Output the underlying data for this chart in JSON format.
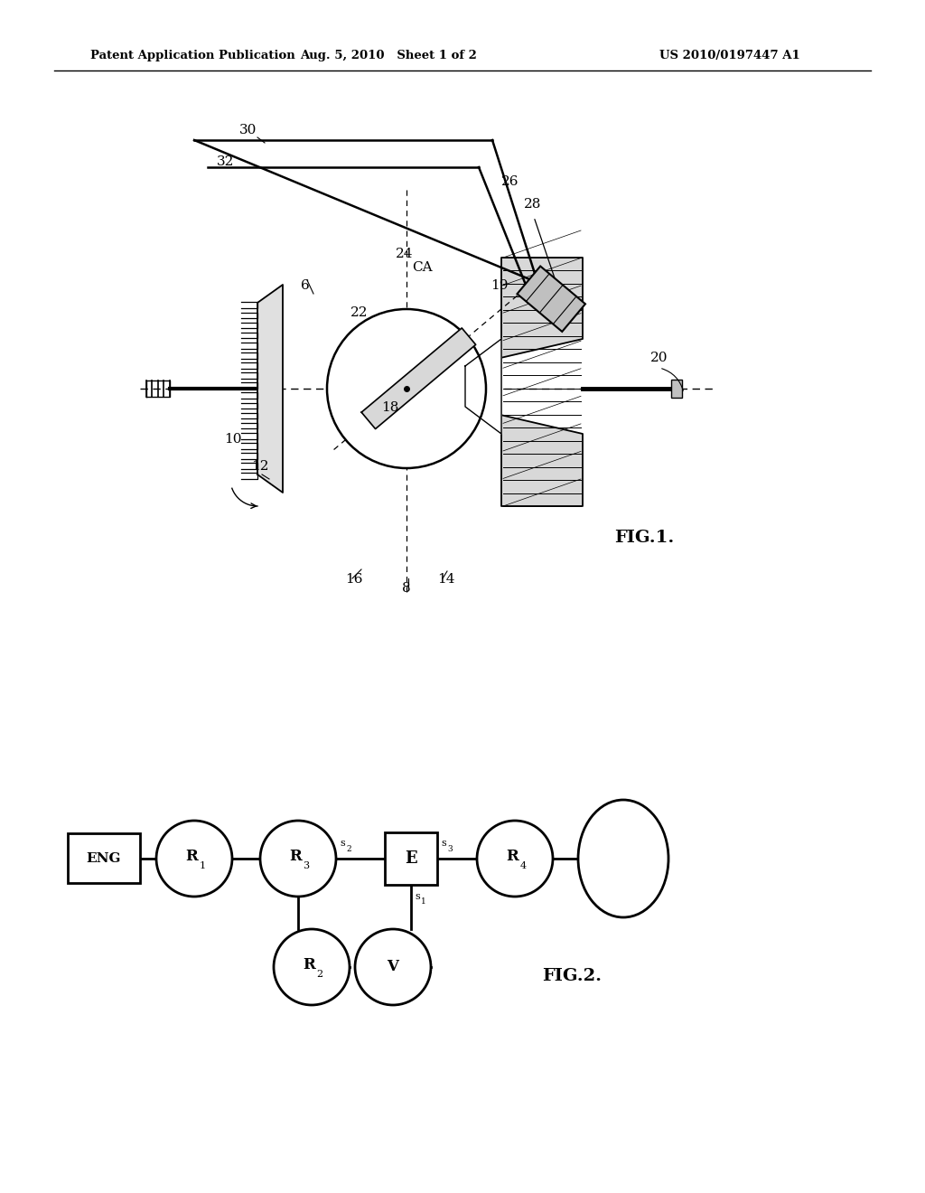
{
  "bg_color": "#ffffff",
  "header_left": "Patent Application Publication",
  "header_mid": "Aug. 5, 2010   Sheet 1 of 2",
  "header_right": "US 2010/0197447 A1",
  "fig1_label": "FIG.1.",
  "fig2_label": "FIG.2."
}
